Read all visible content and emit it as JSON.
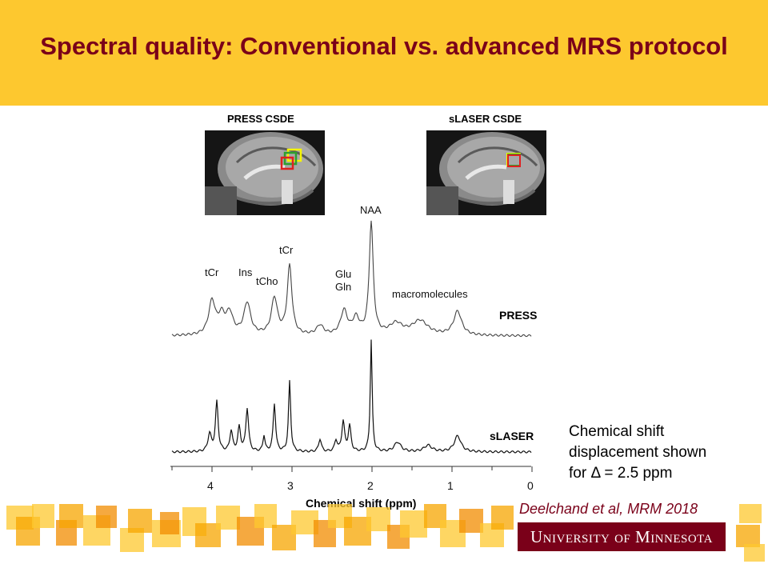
{
  "slide": {
    "title": "Spectral quality: Conventional vs. advanced MRS protocol",
    "colors": {
      "header": "#fdc82f",
      "maroon": "#7a0019",
      "gold": "#f7a500"
    }
  },
  "mri": {
    "press_label": "PRESS CSDE",
    "slaser_label": "sLASER CSDE"
  },
  "figure": {
    "peaks": {
      "tcr_left": "tCr",
      "ins": "Ins",
      "tcho": "tCho",
      "tcr_right": "tCr",
      "glu": "Glu",
      "gln": "Gln",
      "naa": "NAA",
      "macromolecules": "macromolecules"
    },
    "traces": {
      "press": "PRESS",
      "slaser": "sLASER"
    },
    "axis": {
      "label": "Chemical shift (ppm)",
      "ticks": [
        "4",
        "3",
        "2",
        "1",
        "0"
      ],
      "tick_values": [
        4,
        3,
        2,
        1,
        0
      ],
      "range": [
        4.5,
        0
      ]
    }
  },
  "note": {
    "line1": "Chemical shift",
    "line2": "displacement shown",
    "line3": "for Δ = 2.5 ppm"
  },
  "citation": "Deelchand et al, MRM 2018",
  "logo": "University of Minnesota"
}
